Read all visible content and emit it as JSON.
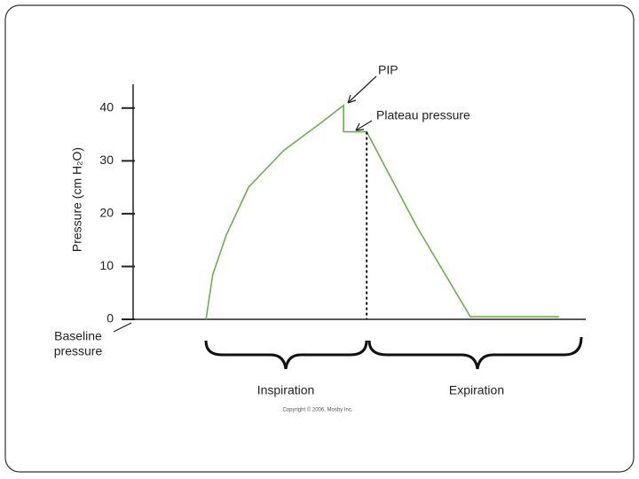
{
  "chart_data": {
    "type": "line",
    "ylabel": "Pressure (cm H₂O)",
    "x": [
      1.61,
      1.76,
      2.06,
      2.55,
      3.33,
      4.12,
      4.65,
      4.65,
      5.16,
      6.27,
      7.45,
      9.41
    ],
    "values": [
      0,
      8.5,
      16,
      25,
      32,
      37,
      40.5,
      35.5,
      35.5,
      17.5,
      0.5,
      0.5
    ],
    "color": "#6ab04c",
    "xlim": [
      0,
      10
    ],
    "ylim": [
      0,
      44.5
    ],
    "yticks": [
      0,
      10,
      20,
      30,
      40
    ],
    "annotations": {
      "pip": "PIP",
      "plateau": "Plateau pressure",
      "baseline": [
        "Baseline",
        "pressure"
      ],
      "inspiration": "Inspiration",
      "expiration": "Expiration",
      "copyright": "Copyright © 2006, Mosby Inc."
    }
  }
}
